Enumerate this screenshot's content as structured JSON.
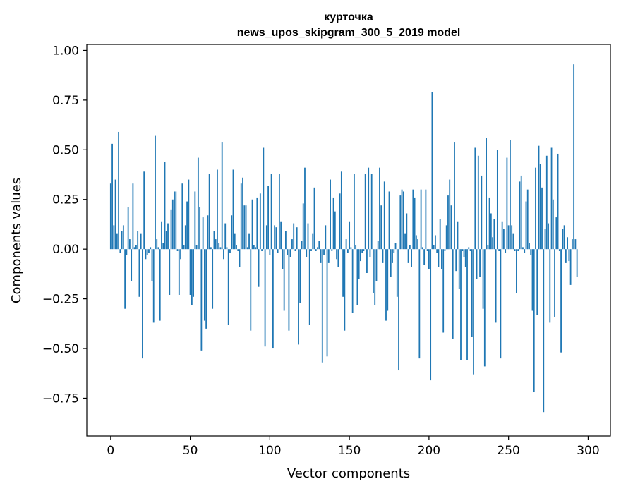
{
  "chart_data": {
    "type": "bar",
    "title": "курточка",
    "subtitle": "news_upos_skipgram_300_5_2019 model",
    "xlabel": "Vector components",
    "ylabel": "Components values",
    "xlim": [
      -15,
      314
    ],
    "ylim": [
      -0.94,
      1.03
    ],
    "xticks": [
      0,
      50,
      100,
      150,
      200,
      250,
      300
    ],
    "xtick_labels": [
      "0",
      "50",
      "100",
      "150",
      "200",
      "250",
      "300"
    ],
    "yticks": [
      -0.75,
      -0.5,
      -0.25,
      0.0,
      0.25,
      0.5,
      0.75,
      1.0
    ],
    "ytick_labels": [
      "−0.75",
      "−0.50",
      "−0.25",
      "0.00",
      "0.25",
      "0.50",
      "0.75",
      "1.00"
    ],
    "grid": false,
    "color": "#1f77b4",
    "values": [
      0.33,
      0.53,
      0.12,
      0.35,
      0.08,
      0.59,
      -0.02,
      0.09,
      0.12,
      -0.3,
      -0.03,
      0.21,
      0.05,
      -0.16,
      0.33,
      0.01,
      0.02,
      0.09,
      -0.24,
      0.08,
      -0.55,
      0.39,
      -0.05,
      -0.03,
      -0.02,
      0.01,
      -0.16,
      -0.37,
      0.57,
      0.05,
      0.01,
      -0.36,
      0.14,
      0.03,
      0.44,
      0.09,
      0.13,
      -0.23,
      0.2,
      0.25,
      0.29,
      0.29,
      -0.01,
      -0.23,
      -0.05,
      0.33,
      0.02,
      0.12,
      0.24,
      0.35,
      -0.23,
      -0.28,
      -0.24,
      0.29,
      0.02,
      0.46,
      0.21,
      -0.51,
      0.16,
      -0.36,
      -0.4,
      0.17,
      0.38,
      0.01,
      -0.3,
      0.09,
      0.05,
      0.4,
      0.03,
      0.01,
      0.54,
      -0.05,
      0.13,
      0.01,
      -0.38,
      -0.02,
      0.17,
      0.4,
      0.08,
      0.02,
      -0.01,
      -0.09,
      0.33,
      0.36,
      0.22,
      0.22,
      0.01,
      0.08,
      -0.41,
      0.25,
      0.02,
      0.01,
      0.26,
      -0.19,
      0.28,
      -0.01,
      0.51,
      -0.49,
      0.12,
      0.32,
      -0.03,
      0.38,
      -0.5,
      0.12,
      0.11,
      -0.02,
      0.38,
      0.14,
      -0.1,
      -0.31,
      0.09,
      -0.03,
      -0.41,
      -0.04,
      0.05,
      0.13,
      -0.01,
      0.11,
      -0.48,
      -0.27,
      0.04,
      0.23,
      0.41,
      -0.04,
      0.13,
      -0.38,
      -0.01,
      0.08,
      0.31,
      -0.01,
      0.01,
      0.04,
      -0.07,
      -0.57,
      -0.03,
      0.12,
      -0.54,
      -0.07,
      0.35,
      -0.01,
      0.26,
      0.19,
      -0.05,
      -0.09,
      0.28,
      0.39,
      -0.24,
      -0.41,
      0.05,
      -0.02,
      0.14,
      0.01,
      -0.32,
      0.38,
      0.02,
      -0.28,
      -0.15,
      -0.06,
      -0.02,
      -0.01,
      0.38,
      -0.12,
      0.41,
      -0.04,
      0.38,
      -0.22,
      -0.28,
      -0.16,
      0.04,
      0.41,
      0.22,
      -0.07,
      0.34,
      -0.36,
      -0.31,
      0.29,
      -0.14,
      -0.07,
      -0.02,
      0.03,
      -0.24,
      -0.61,
      0.27,
      0.3,
      0.29,
      0.08,
      0.18,
      -0.07,
      0.02,
      -0.09,
      0.3,
      0.26,
      0.07,
      0.05,
      -0.55,
      0.3,
      0.01,
      -0.08,
      0.3,
      -0.01,
      -0.1,
      -0.66,
      0.79,
      0.02,
      0.07,
      -0.02,
      -0.09,
      0.15,
      -0.1,
      -0.42,
      -0.01,
      0.12,
      0.27,
      0.35,
      0.22,
      -0.45,
      0.54,
      -0.11,
      0.14,
      -0.2,
      -0.56,
      -0.01,
      -0.04,
      -0.09,
      -0.56,
      0.01,
      -0.01,
      -0.44,
      -0.63,
      0.51,
      -0.15,
      0.47,
      -0.14,
      0.37,
      -0.3,
      -0.59,
      0.56,
      0.02,
      0.26,
      0.18,
      0.06,
      0.15,
      -0.37,
      0.5,
      -0.01,
      -0.55,
      0.14,
      0.1,
      -0.02,
      0.46,
      0.12,
      0.55,
      0.12,
      0.08,
      -0.01,
      -0.22,
      -0.01,
      0.34,
      0.37,
      0.01,
      -0.02,
      0.24,
      0.3,
      0.03,
      -0.03,
      -0.31,
      -0.72,
      0.41,
      -0.33,
      0.52,
      0.43,
      0.31,
      -0.82,
      0.1,
      0.47,
      0.13,
      -0.37,
      0.51,
      0.25,
      -0.34,
      0.16,
      0.48,
      -0.01,
      -0.52,
      0.1,
      0.12,
      -0.07,
      0.06,
      -0.06,
      -0.18,
      0.05,
      0.93,
      0.05,
      -0.14
    ]
  }
}
